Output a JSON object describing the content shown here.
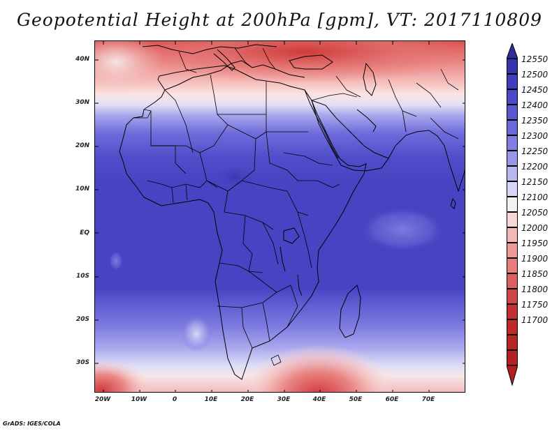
{
  "title": "Geopotential Height at 200hPa [gpm], VT: 2017110809",
  "footer": "GrADS: IGES/COLA",
  "lat_labels": [
    "40N",
    "30N",
    "20N",
    "10N",
    "EQ",
    "10S",
    "20S",
    "30S"
  ],
  "lon_labels": [
    "20W",
    "10W",
    "0",
    "10E",
    "20E",
    "30E",
    "40E",
    "50E",
    "60E",
    "70E"
  ],
  "colorbar": {
    "levels": [
      "12550",
      "12500",
      "12450",
      "12400",
      "12350",
      "12300",
      "12250",
      "12200",
      "12150",
      "12100",
      "12050",
      "12000",
      "11950",
      "11900",
      "11850",
      "11800",
      "11750",
      "11700"
    ],
    "colors": [
      "#2e2c9c",
      "#3735ad",
      "#403fbb",
      "#4a49c6",
      "#5a58d0",
      "#6b69d9",
      "#7f7de0",
      "#9997e7",
      "#b8b7ef",
      "#d8d7f7",
      "#f5f0f3",
      "#f9d7d6",
      "#f3b7b6",
      "#ec9a98",
      "#e47d7c",
      "#db6060",
      "#d04545",
      "#c33030",
      "#b31f1f"
    ]
  }
}
